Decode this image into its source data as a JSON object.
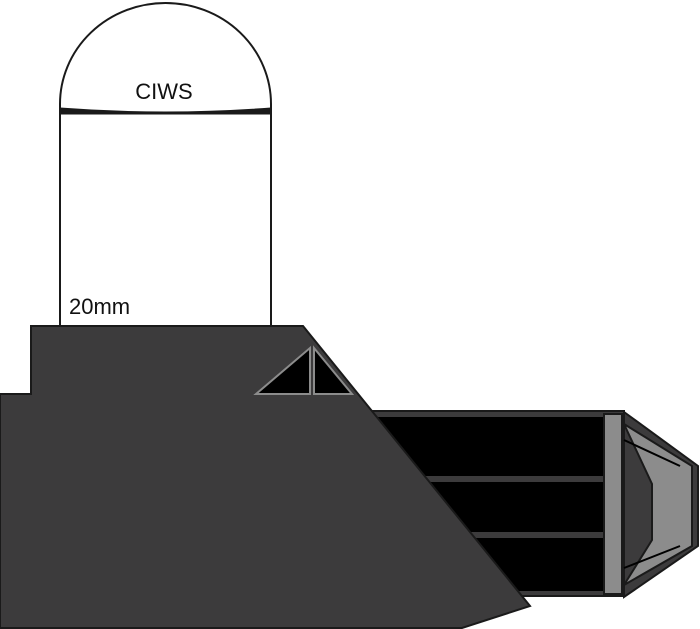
{
  "labels": {
    "dome_label": "CIWS",
    "barrel_label": "20mm"
  },
  "colors": {
    "body_fill": "#3c3b3c",
    "barrel_fill": "#000000",
    "muzzle_ring": "#8c8c8c",
    "outline": "#1a1a1a",
    "dome_fill": "#ffffff"
  }
}
